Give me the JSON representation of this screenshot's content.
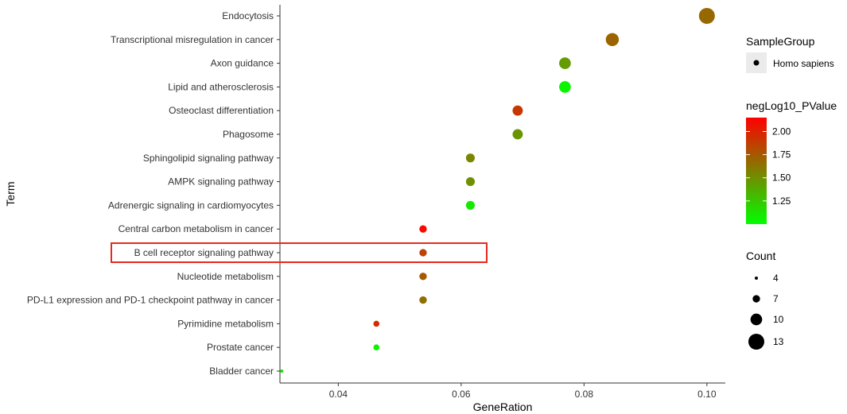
{
  "chart_data": {
    "type": "scatter",
    "xlabel": "GeneRation",
    "ylabel": "Term",
    "xlim": [
      0.0305,
      0.103
    ],
    "xticks": [
      "0.04",
      "0.06",
      "0.08",
      "0.10"
    ],
    "xtick_values": [
      0.04,
      0.06,
      0.08,
      0.1
    ],
    "terms": [
      "Endocytosis",
      "Transcriptional misregulation in cancer",
      "Axon guidance",
      "Lipid and atherosclerosis",
      "Osteoclast differentiation",
      "Phagosome",
      "Sphingolipid signaling pathway",
      "AMPK signaling pathway",
      "Adrenergic signaling in cardiomyocytes",
      "Central carbon metabolism in cancer",
      "B cell receptor signaling pathway",
      "Nucleotide metabolism",
      "PD-L1 expression and PD-1 checkpoint pathway in cancer",
      "Pyrimidine metabolism",
      "Prostate cancer",
      "Bladder cancer"
    ],
    "points": [
      {
        "term": "Endocytosis",
        "gene_ratio": 0.1,
        "neg_log10_pvalue": 1.68,
        "count": 13
      },
      {
        "term": "Transcriptional misregulation in cancer",
        "gene_ratio": 0.0846,
        "neg_log10_pvalue": 1.7,
        "count": 11
      },
      {
        "term": "Axon guidance",
        "gene_ratio": 0.0769,
        "neg_log10_pvalue": 1.45,
        "count": 10
      },
      {
        "term": "Lipid and atherosclerosis",
        "gene_ratio": 0.0769,
        "neg_log10_pvalue": 1.05,
        "count": 10
      },
      {
        "term": "Osteoclast differentiation",
        "gene_ratio": 0.0692,
        "neg_log10_pvalue": 1.9,
        "count": 9
      },
      {
        "term": "Phagosome",
        "gene_ratio": 0.0692,
        "neg_log10_pvalue": 1.48,
        "count": 9
      },
      {
        "term": "Sphingolipid signaling pathway",
        "gene_ratio": 0.0615,
        "neg_log10_pvalue": 1.55,
        "count": 8
      },
      {
        "term": "AMPK signaling pathway",
        "gene_ratio": 0.0615,
        "neg_log10_pvalue": 1.5,
        "count": 8
      },
      {
        "term": "Adrenergic signaling in cardiomyocytes",
        "gene_ratio": 0.0615,
        "neg_log10_pvalue": 1.1,
        "count": 8
      },
      {
        "term": "Central carbon metabolism in cancer",
        "gene_ratio": 0.0538,
        "neg_log10_pvalue": 2.1,
        "count": 7
      },
      {
        "term": "B cell receptor signaling pathway",
        "gene_ratio": 0.0538,
        "neg_log10_pvalue": 1.85,
        "count": 7
      },
      {
        "term": "Nucleotide metabolism",
        "gene_ratio": 0.0538,
        "neg_log10_pvalue": 1.75,
        "count": 7
      },
      {
        "term": "PD-L1 expression and PD-1 checkpoint pathway in cancer",
        "gene_ratio": 0.0538,
        "neg_log10_pvalue": 1.65,
        "count": 7
      },
      {
        "term": "Pyrimidine metabolism",
        "gene_ratio": 0.0462,
        "neg_log10_pvalue": 1.95,
        "count": 6
      },
      {
        "term": "Prostate cancer",
        "gene_ratio": 0.0462,
        "neg_log10_pvalue": 1.05,
        "count": 6
      },
      {
        "term": "Bladder cancer",
        "gene_ratio": 0.0308,
        "neg_log10_pvalue": 1.1,
        "count": 4
      }
    ],
    "highlighted_term": "B cell receptor signaling pathway",
    "highlight_color": "#e8281e",
    "legend": {
      "shape": {
        "title": "SampleGroup",
        "entries": [
          "Homo sapiens"
        ]
      },
      "color": {
        "title": "negLog10_PValue",
        "range": [
          1.0,
          2.15
        ],
        "ticks": [
          "2.00",
          "1.75",
          "1.50",
          "1.25"
        ],
        "tick_values": [
          2.0,
          1.75,
          1.5,
          1.25
        ],
        "low_color": "#00ff00",
        "high_color": "#ff0000"
      },
      "size": {
        "title": "Count",
        "entries": [
          "4",
          "7",
          "10",
          "13"
        ],
        "values": [
          4,
          7,
          10,
          13
        ]
      }
    },
    "grid": false,
    "legend_placement": "right"
  }
}
